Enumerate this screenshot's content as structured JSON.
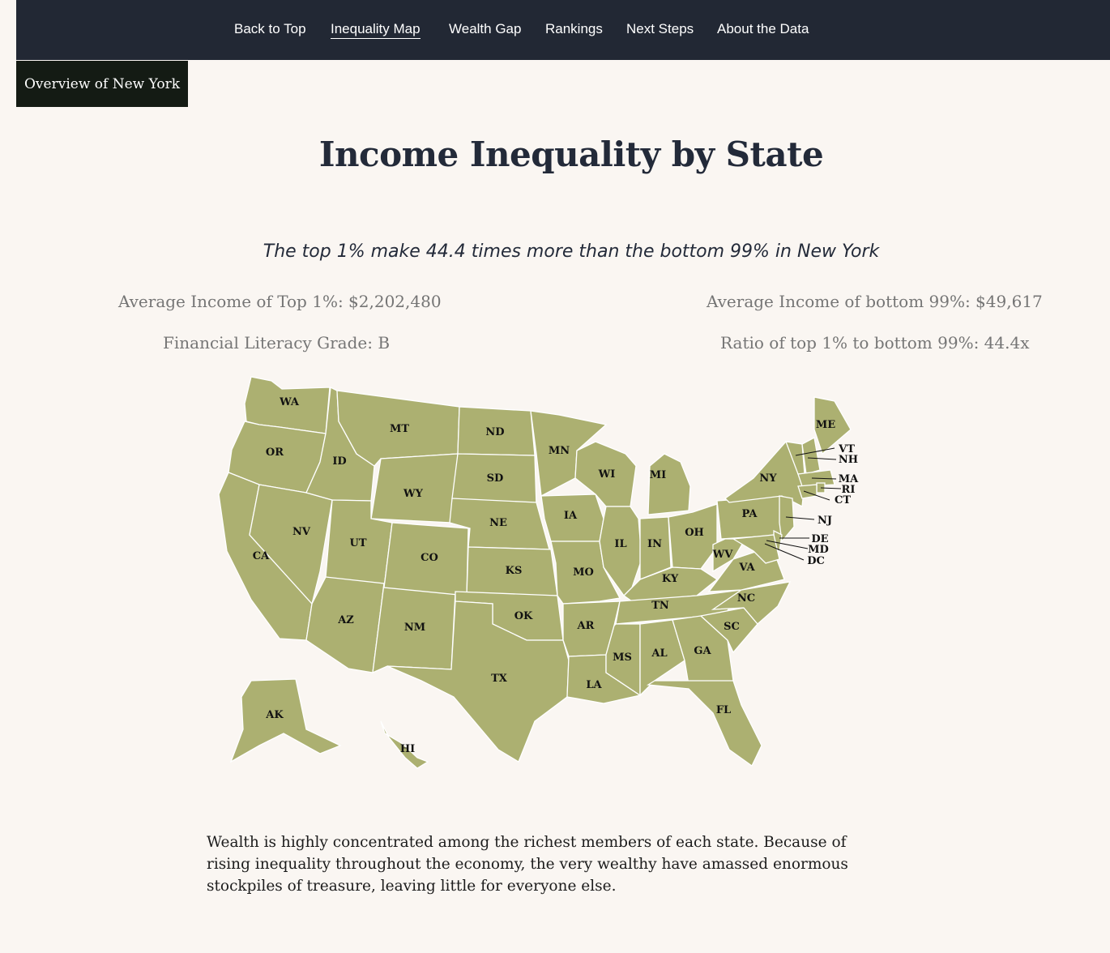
{
  "nav": {
    "items": [
      {
        "label": "Back to Top"
      },
      {
        "label": "Inequality Map"
      },
      {
        "label": "Wealth Gap"
      },
      {
        "label": "Rankings"
      },
      {
        "label": "Next Steps"
      },
      {
        "label": "About the Data"
      }
    ],
    "active": "Inequality Map"
  },
  "overview_tab": "Overview of New York",
  "page_title": "Income Inequality by State",
  "headline": "The top 1% make 44.4 times more than the bottom 99% in New York",
  "stats": {
    "top1": "Average Income of Top 1%: $2,202,480",
    "bottom99": "Average Income of bottom 99%: $49,617",
    "grade": "Financial Literacy Grade: B",
    "ratio": "Ratio of top 1% to bottom 99%: 44.4x"
  },
  "map": {
    "fill_color": "#acb071",
    "border_color": "#ffffff",
    "states": [
      "WA",
      "OR",
      "CA",
      "NV",
      "ID",
      "MT",
      "WY",
      "UT",
      "AZ",
      "NM",
      "CO",
      "ND",
      "SD",
      "NE",
      "KS",
      "OK",
      "TX",
      "MN",
      "IA",
      "MO",
      "AR",
      "LA",
      "WI",
      "IL",
      "MI",
      "IN",
      "OH",
      "KY",
      "TN",
      "MS",
      "AL",
      "GA",
      "FL",
      "SC",
      "NC",
      "VA",
      "WV",
      "PA",
      "NY",
      "ME",
      "VT",
      "NH",
      "MA",
      "RI",
      "CT",
      "NJ",
      "DE",
      "MD",
      "DC",
      "AK",
      "HI"
    ]
  },
  "body_text": "Wealth is highly concentrated among the richest members of each state. Because of rising inequality throughout the economy, the very wealthy have amassed enormous stockpiles of treasure, leaving little for everyone else.",
  "colors": {
    "nav_bg": "#222834",
    "tab_bg": "#141b14",
    "page_bg": "#faf6f2",
    "title_color": "#232a39",
    "stat_color": "#757575"
  }
}
